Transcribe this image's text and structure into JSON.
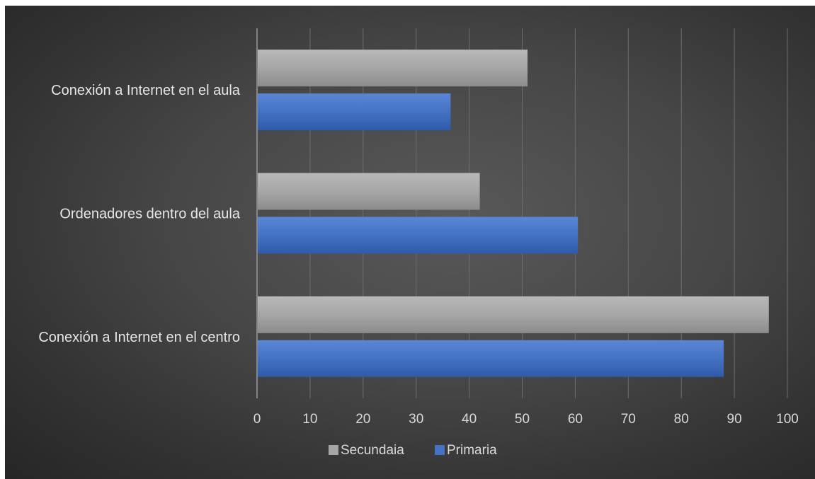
{
  "chart_data": {
    "type": "bar",
    "orientation": "horizontal",
    "categories": [
      "Conexión a Internet en el aula",
      "Ordenadores dentro del aula",
      "Conexión a Internet en el centro"
    ],
    "series": [
      {
        "name": "Secundaia",
        "values": [
          51,
          42,
          96.5
        ],
        "color": "#a6a6a6"
      },
      {
        "name": "Primaria",
        "values": [
          36.5,
          60.5,
          88
        ],
        "color": "#4472c4"
      }
    ],
    "xticks": [
      "0",
      "10",
      "20",
      "30",
      "40",
      "50",
      "60",
      "70",
      "80",
      "90",
      "100"
    ],
    "xlim": [
      0,
      100
    ],
    "grid": true,
    "legend_position": "bottom"
  }
}
